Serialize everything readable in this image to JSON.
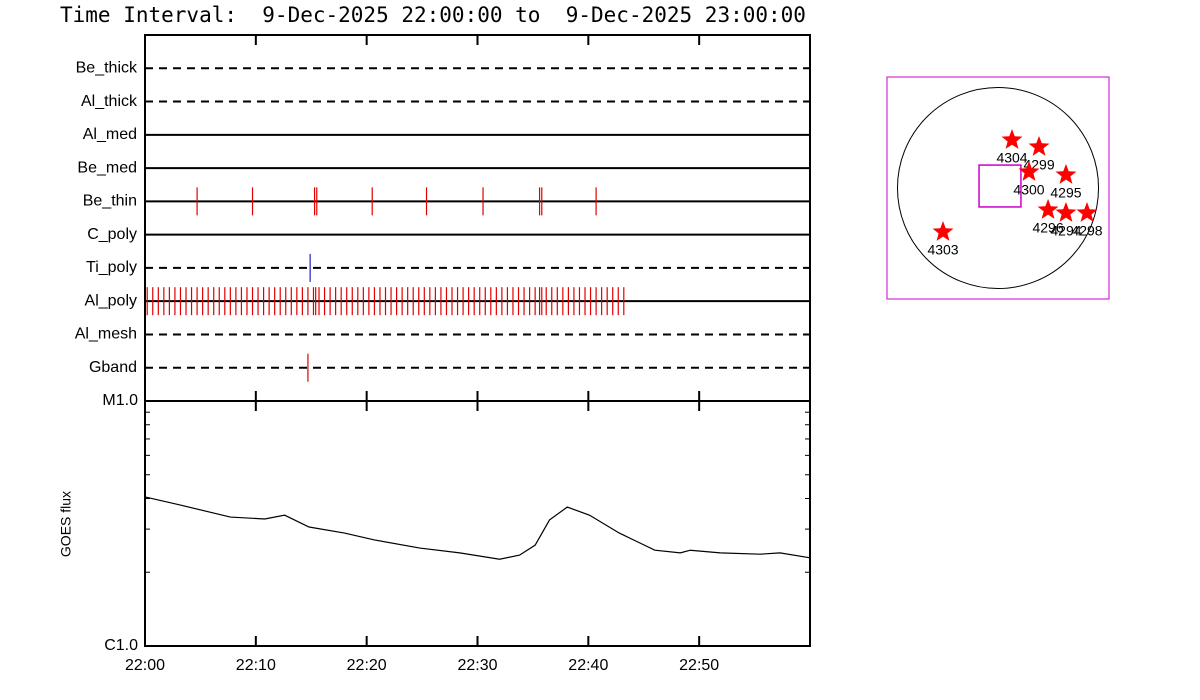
{
  "title": "Time Interval:  9-Dec-2025 22:00:00 to  9-Dec-2025 23:00:00",
  "chart_data": [
    {
      "type": "event-timeline",
      "xlim": [
        0,
        60
      ],
      "xticks": [
        0,
        10,
        20,
        30,
        40,
        50
      ],
      "rows": [
        {
          "name": "Be_thick",
          "line": "dashed",
          "events": []
        },
        {
          "name": "Al_thick",
          "line": "dashed",
          "events": []
        },
        {
          "name": "Al_med",
          "line": "solid",
          "events": []
        },
        {
          "name": "Be_med",
          "line": "solid",
          "events": []
        },
        {
          "name": "Be_thin",
          "line": "solid",
          "color": "#e00000",
          "events": [
            4.7,
            9.7,
            15.3,
            15.5,
            20.5,
            25.4,
            30.5,
            35.6,
            35.8,
            40.7
          ]
        },
        {
          "name": "C_poly",
          "line": "solid",
          "events": []
        },
        {
          "name": "Ti_poly",
          "line": "dashed",
          "color": "#2020c0",
          "events": [
            14.9
          ]
        },
        {
          "name": "Al_poly",
          "line": "solid",
          "color": "#e00000",
          "events": [
            0.2,
            0.7,
            1.2,
            1.7,
            2.2,
            2.7,
            3.2,
            3.7,
            4.2,
            4.7,
            5.2,
            5.7,
            6.2,
            6.7,
            7.2,
            7.7,
            8.2,
            8.7,
            9.2,
            9.7,
            10.2,
            10.7,
            11.2,
            11.7,
            12.2,
            12.7,
            13.2,
            13.7,
            14.2,
            14.7,
            15.2,
            15.4,
            15.7,
            16.2,
            16.7,
            17.2,
            17.7,
            18.2,
            18.7,
            19.2,
            19.7,
            20.2,
            20.7,
            21.2,
            21.7,
            22.2,
            22.7,
            23.2,
            23.7,
            24.2,
            24.7,
            25.2,
            25.7,
            26.2,
            26.7,
            27.2,
            27.7,
            28.2,
            28.7,
            29.2,
            29.7,
            30.2,
            30.7,
            31.2,
            31.7,
            32.2,
            32.7,
            33.2,
            33.7,
            34.2,
            34.7,
            35.2,
            35.6,
            35.8,
            36.2,
            36.7,
            37.2,
            37.7,
            38.2,
            38.7,
            39.2,
            39.7,
            40.2,
            40.7,
            41.2,
            41.7,
            42.2,
            42.7,
            43.2
          ]
        },
        {
          "name": "Al_mesh",
          "line": "dashed",
          "events": []
        },
        {
          "name": "Gband",
          "line": "dashed",
          "color": "#e00000",
          "events": [
            14.7
          ]
        }
      ]
    },
    {
      "type": "line",
      "ylabel": "GOES flux",
      "color": "#000000",
      "log": true,
      "x": [
        0,
        3.2,
        7.7,
        10.8,
        12.6,
        14.8,
        18.0,
        20.7,
        24.8,
        28.4,
        32.0,
        33.8,
        35.2,
        36.5,
        38.1,
        40.1,
        42.8,
        46.0,
        48.3,
        49.2,
        51.9,
        55.5,
        57.3,
        60.0
      ],
      "values": [
        4.06e-06,
        3.76e-06,
        3.36e-06,
        3.3e-06,
        3.42e-06,
        3.06e-06,
        2.89e-06,
        2.71e-06,
        2.51e-06,
        2.4e-06,
        2.26e-06,
        2.35e-06,
        2.58e-06,
        3.27e-06,
        3.69e-06,
        3.42e-06,
        2.89e-06,
        2.46e-06,
        2.4e-06,
        2.46e-06,
        2.4e-06,
        2.37e-06,
        2.4e-06,
        2.29e-06
      ],
      "xlim": [
        0,
        60
      ],
      "xticks": [
        {
          "value": 0,
          "label": "22:00"
        },
        {
          "value": 10,
          "label": "22:10"
        },
        {
          "value": 20,
          "label": "22:20"
        },
        {
          "value": 30,
          "label": "22:30"
        },
        {
          "value": 40,
          "label": "22:40"
        },
        {
          "value": 50,
          "label": "22:50"
        }
      ],
      "ylim": [
        1e-06,
        1e-05
      ],
      "yticks": [
        {
          "value": 1e-06,
          "label": "C1.0"
        },
        {
          "value": 1e-05,
          "label": "M1.0"
        }
      ],
      "yminor": [
        2e-06,
        3e-06,
        4e-06,
        5e-06,
        6e-06,
        7e-06,
        8e-06,
        9e-06
      ]
    },
    {
      "type": "map",
      "xlim": [
        -1060,
        1060
      ],
      "ylim": [
        -1060,
        1060
      ],
      "disk_radius": 960,
      "box_color": "#cc00cc",
      "marker_color": "#ff0000",
      "fov": {
        "x": 19,
        "y": 19,
        "width": 400,
        "height": 400
      },
      "points": [
        {
          "label": "4304",
          "x": 134,
          "y": 458
        },
        {
          "label": "4299",
          "x": 392,
          "y": 392
        },
        {
          "label": "4300",
          "x": 296,
          "y": 153
        },
        {
          "label": "4295",
          "x": 649,
          "y": 124
        },
        {
          "label": "4296",
          "x": 478,
          "y": -210
        },
        {
          "label": "4294",
          "x": 649,
          "y": -239
        },
        {
          "label": "4298",
          "x": 850,
          "y": -239
        },
        {
          "label": "4303",
          "x": -525,
          "y": -420
        }
      ]
    }
  ]
}
